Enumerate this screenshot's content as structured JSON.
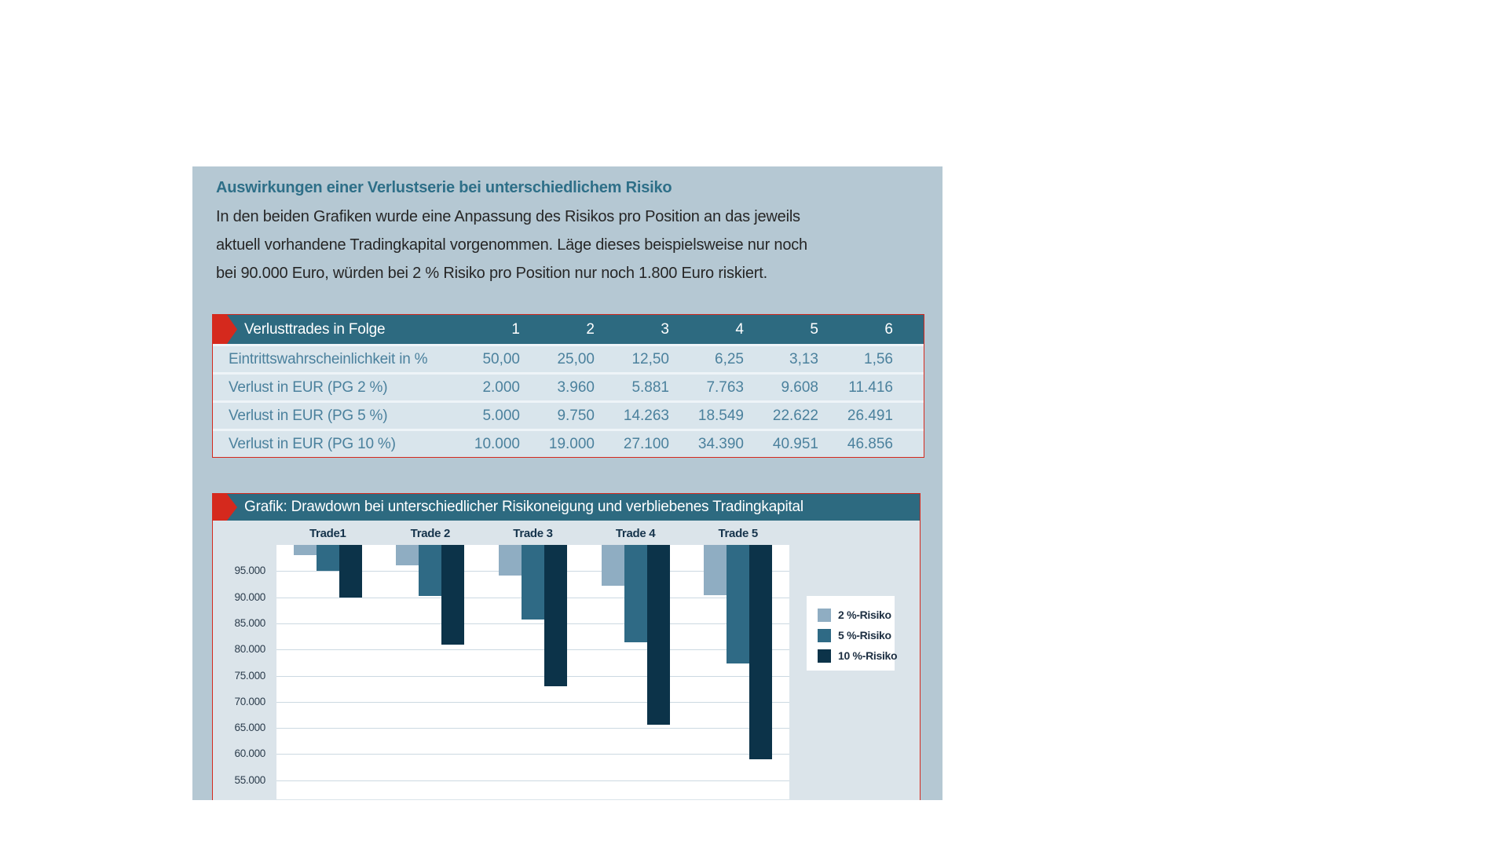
{
  "panel": {
    "heading": "Auswirkungen einer Verlustserie bei unterschiedlichem Risiko",
    "paragraph_lines": [
      "In den beiden Grafiken wurde eine Anpassung des Risikos pro Position an das jeweils",
      "aktuell vorhandene Tradingkapital vorgenommen. Läge dieses beispielsweise nur noch",
      "bei 90.000 Euro, würden bei 2 % Risiko pro Position nur noch 1.800 Euro riskiert."
    ]
  },
  "table": {
    "header": {
      "label": "Verlusttrades in Folge",
      "columns": [
        "1",
        "2",
        "3",
        "4",
        "5",
        "6"
      ]
    },
    "rows": [
      {
        "label": "Eintrittswahrscheinlichkeit in %",
        "values": [
          "50,00",
          "25,00",
          "12,50",
          "6,25",
          "3,13",
          "1,56"
        ]
      },
      {
        "label": "Verlust in EUR (PG 2 %)",
        "values": [
          "2.000",
          "3.960",
          "5.881",
          "7.763",
          "9.608",
          "11.416"
        ]
      },
      {
        "label": "Verlust in EUR (PG 5 %)",
        "values": [
          "5.000",
          "9.750",
          "14.263",
          "18.549",
          "22.622",
          "26.491"
        ]
      },
      {
        "label": "Verlust in EUR (PG 10 %)",
        "values": [
          "10.000",
          "19.000",
          "27.100",
          "34.390",
          "40.951",
          "46.856"
        ]
      }
    ]
  },
  "chart_section": {
    "title": "Grafik: Drawdown bei unterschiedlicher Risikoneigung und verbliebenes Tradingkapital"
  },
  "chart_data": {
    "type": "bar",
    "title": "Grafik: Drawdown bei unterschiedlicher Risikoneigung und verbliebenes Tradingkapital",
    "categories": [
      "Trade1",
      "Trade 2",
      "Trade 3",
      "Trade 4",
      "Trade 5"
    ],
    "series": [
      {
        "name": "2 %-Risiko",
        "color": "#8fadc2",
        "values": [
          98000,
          96040,
          94119,
          92237,
          90392
        ]
      },
      {
        "name": "5 %-Risiko",
        "color": "#2f6a85",
        "values": [
          95000,
          90250,
          85738,
          81451,
          77378
        ]
      },
      {
        "name": "10 %-Risiko",
        "color": "#0c3349",
        "values": [
          90000,
          81000,
          72900,
          65610,
          59049
        ]
      }
    ],
    "y_top": 100000,
    "yticks": [
      {
        "value": 95000,
        "label": "95.000"
      },
      {
        "value": 90000,
        "label": "90.000"
      },
      {
        "value": 85000,
        "label": "85.000"
      },
      {
        "value": 80000,
        "label": "80.000"
      },
      {
        "value": 75000,
        "label": "75.000"
      },
      {
        "value": 70000,
        "label": "70.000"
      },
      {
        "value": 65000,
        "label": "65.000"
      },
      {
        "value": 60000,
        "label": "60.000"
      },
      {
        "value": 55000,
        "label": "55.000"
      }
    ],
    "ylabel": "",
    "xlabel": "",
    "grid": "horizontal",
    "legend_position": "right",
    "bars_hang_from_top": true
  },
  "colors": {
    "panel_background": "#b5c8d3",
    "heading_text": "#2e6f88",
    "section_header_background": "#2d6a80",
    "accent_red": "#d5291d",
    "table_row_background": "#d9e5ec",
    "table_text": "#4b819d",
    "chart_background": "#dbe4ea",
    "gridline": "#ccd9e2"
  }
}
